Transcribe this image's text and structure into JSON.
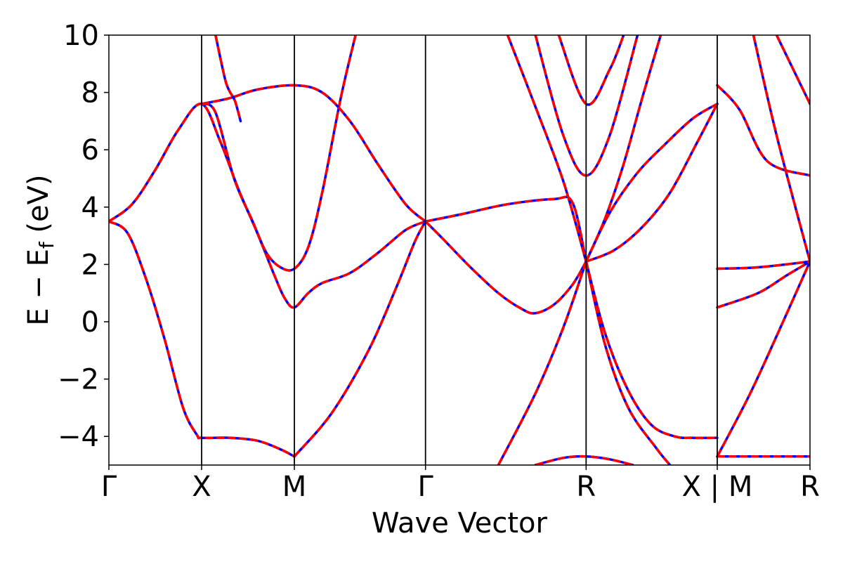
{
  "chart_data": {
    "type": "line",
    "title": "",
    "xlabel": "Wave Vector",
    "ylabel": "E − E_f (eV)",
    "ylabel_main": "E − E",
    "ylabel_sub": "f",
    "ylabel_tail": " (eV)",
    "ylim": [
      -5,
      10
    ],
    "y_ticks": [
      -4,
      -2,
      0,
      2,
      4,
      6,
      8,
      10
    ],
    "y_tick_labels": [
      "−4",
      "−2",
      "0",
      "2",
      "4",
      "6",
      "8",
      "10"
    ],
    "x_ticks": [
      {
        "k": 0.0,
        "label": "Γ"
      },
      {
        "k": 1.0,
        "label": "X"
      },
      {
        "k": 2.0,
        "label": "M"
      },
      {
        "k": 3.414,
        "label": "Γ"
      },
      {
        "k": 5.146,
        "label": "R"
      },
      {
        "k": 6.56,
        "label": "X | M"
      },
      {
        "k": 7.56,
        "label": "R"
      }
    ],
    "xlim": [
      0,
      7.56
    ],
    "grid": false,
    "series": [
      {
        "color": "#0000ff",
        "style": "solid"
      },
      {
        "color": "#ff0000",
        "style": "dashed"
      }
    ],
    "bands": [
      [
        [
          0,
          3.5
        ],
        [
          0.2,
          3.1
        ],
        [
          0.4,
          1.5
        ],
        [
          0.6,
          -0.6
        ],
        [
          0.8,
          -3.0
        ],
        [
          0.95,
          -3.95
        ],
        [
          1.0,
          -4.05
        ],
        [
          1.3,
          -4.05
        ],
        [
          1.6,
          -4.15
        ],
        [
          1.85,
          -4.45
        ],
        [
          2.0,
          -4.7
        ]
      ],
      [
        [
          0,
          3.5
        ],
        [
          0.25,
          4.1
        ],
        [
          0.5,
          5.3
        ],
        [
          0.75,
          6.7
        ],
        [
          1.0,
          7.6
        ],
        [
          1.2,
          6.3
        ],
        [
          1.4,
          4.6
        ],
        [
          1.6,
          3.1
        ],
        [
          1.8,
          1.5
        ],
        [
          1.9,
          0.8
        ],
        [
          2.0,
          0.5
        ],
        [
          2.15,
          1.0
        ],
        [
          2.3,
          1.35
        ],
        [
          2.6,
          1.7
        ],
        [
          2.9,
          2.4
        ],
        [
          3.2,
          3.2
        ],
        [
          3.414,
          3.5
        ]
      ],
      [
        [
          1.0,
          7.6
        ],
        [
          1.15,
          7.3
        ],
        [
          1.35,
          5.0
        ],
        [
          1.55,
          3.5
        ],
        [
          1.7,
          2.4
        ],
        [
          1.85,
          1.9
        ],
        [
          2.0,
          1.85
        ],
        [
          2.15,
          2.6
        ],
        [
          2.3,
          4.5
        ],
        [
          2.5,
          7.8
        ],
        [
          2.66,
          10.0
        ]
      ],
      [
        [
          1.0,
          7.6
        ],
        [
          1.3,
          7.8
        ],
        [
          1.6,
          8.1
        ],
        [
          2.0,
          8.25
        ],
        [
          2.3,
          8.0
        ],
        [
          2.6,
          7.0
        ],
        [
          2.9,
          5.5
        ],
        [
          3.2,
          4.1
        ],
        [
          3.414,
          3.5
        ]
      ],
      [
        [
          1.15,
          10.0
        ],
        [
          1.25,
          8.5
        ],
        [
          1.3,
          8.05
        ],
        [
          1.36,
          7.7
        ],
        [
          1.42,
          7.0
        ]
      ],
      [
        [
          2.0,
          -4.7
        ],
        [
          2.4,
          -3.2
        ],
        [
          2.8,
          -1.0
        ],
        [
          3.1,
          1.2
        ],
        [
          3.3,
          2.8
        ],
        [
          3.414,
          3.5
        ]
      ],
      [
        [
          3.414,
          3.5
        ],
        [
          3.6,
          2.9
        ],
        [
          3.9,
          1.9
        ],
        [
          4.2,
          1.0
        ],
        [
          4.45,
          0.45
        ],
        [
          4.6,
          0.3
        ],
        [
          4.8,
          0.6
        ],
        [
          5.0,
          1.3
        ],
        [
          5.146,
          2.1
        ]
      ],
      [
        [
          3.414,
          3.5
        ],
        [
          3.8,
          3.75
        ],
        [
          4.3,
          4.1
        ],
        [
          4.8,
          4.28
        ],
        [
          5.0,
          4.15
        ],
        [
          5.146,
          2.1
        ]
      ],
      [
        [
          4.3,
          10.0
        ],
        [
          4.6,
          7.5
        ],
        [
          4.9,
          4.9
        ],
        [
          5.146,
          2.1
        ]
      ],
      [
        [
          4.2,
          -5.0
        ],
        [
          4.6,
          -2.5
        ],
        [
          4.9,
          -0.2
        ],
        [
          5.146,
          2.1
        ]
      ],
      [
        [
          5.146,
          2.1
        ],
        [
          5.35,
          -0.4
        ],
        [
          5.6,
          -2.4
        ],
        [
          5.85,
          -3.6
        ],
        [
          6.1,
          -4.0
        ],
        [
          6.3,
          -4.05
        ],
        [
          6.56,
          -4.05
        ]
      ],
      [
        [
          5.146,
          2.1
        ],
        [
          5.35,
          -0.8
        ],
        [
          5.6,
          -3.0
        ],
        [
          5.9,
          -4.4
        ],
        [
          6.05,
          -5.0
        ]
      ],
      [
        [
          5.146,
          2.1
        ],
        [
          5.45,
          2.5
        ],
        [
          5.75,
          3.3
        ],
        [
          6.05,
          4.5
        ],
        [
          6.35,
          6.3
        ],
        [
          6.56,
          7.6
        ]
      ],
      [
        [
          5.146,
          2.1
        ],
        [
          5.4,
          3.8
        ],
        [
          5.7,
          5.2
        ],
        [
          6.0,
          6.2
        ],
        [
          6.3,
          7.1
        ],
        [
          6.56,
          7.6
        ]
      ],
      [
        [
          5.146,
          2.1
        ],
        [
          5.35,
          3.6
        ],
        [
          5.55,
          5.5
        ],
        [
          5.75,
          7.8
        ],
        [
          5.95,
          10.0
        ]
      ],
      [
        [
          4.6,
          10.0
        ],
        [
          4.9,
          6.5
        ],
        [
          5.146,
          5.1
        ],
        [
          5.4,
          6.5
        ],
        [
          5.7,
          10.0
        ]
      ],
      [
        [
          4.85,
          10.0
        ],
        [
          5.146,
          7.6
        ],
        [
          5.4,
          8.8
        ],
        [
          5.55,
          10.0
        ]
      ],
      [
        [
          6.56,
          8.25
        ],
        [
          6.8,
          7.4
        ],
        [
          7.1,
          5.6
        ],
        [
          7.56,
          5.1
        ]
      ],
      [
        [
          6.56,
          1.85
        ],
        [
          7.0,
          1.9
        ],
        [
          7.56,
          2.1
        ]
      ],
      [
        [
          6.56,
          0.5
        ],
        [
          7.0,
          1.0
        ],
        [
          7.3,
          1.6
        ],
        [
          7.56,
          2.1
        ]
      ],
      [
        [
          6.56,
          -4.7
        ],
        [
          6.9,
          -2.6
        ],
        [
          7.2,
          -0.5
        ],
        [
          7.56,
          2.1
        ]
      ],
      [
        [
          6.56,
          -4.7
        ],
        [
          7.0,
          -4.7
        ],
        [
          7.56,
          -4.7
        ]
      ],
      [
        [
          6.95,
          10.0
        ],
        [
          7.2,
          6.5
        ],
        [
          7.56,
          2.1
        ]
      ],
      [
        [
          7.2,
          10.0
        ],
        [
          7.56,
          7.6
        ]
      ],
      [
        [
          4.6,
          -5.0
        ],
        [
          4.9,
          -4.75
        ],
        [
          5.146,
          -4.7
        ],
        [
          5.4,
          -4.8
        ],
        [
          5.65,
          -5.0
        ]
      ]
    ]
  }
}
